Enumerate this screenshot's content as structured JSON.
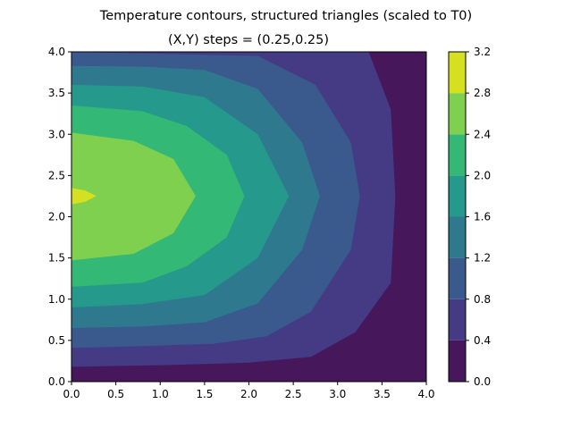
{
  "chart_data": {
    "type": "contour",
    "title": "Temperature contours, structured triangles (scaled to T0)",
    "subtitle": "(X,Y) steps = (0.25,0.25)",
    "xlabel": "",
    "ylabel": "",
    "xlim": [
      0,
      4
    ],
    "ylim": [
      0,
      4
    ],
    "x_ticks": [
      "0.0",
      "0.5",
      "1.0",
      "1.5",
      "2.0",
      "2.5",
      "3.0",
      "3.5",
      "4.0"
    ],
    "y_ticks": [
      "0.0",
      "0.5",
      "1.0",
      "1.5",
      "2.0",
      "2.5",
      "3.0",
      "3.5",
      "4.0"
    ],
    "levels": [
      0.0,
      0.4,
      0.8,
      1.2,
      1.6,
      2.0,
      2.4,
      2.8,
      3.2
    ],
    "level_colors": [
      "#46185b",
      "#453b84",
      "#3a5a8d",
      "#2f798e",
      "#25998b",
      "#33b876",
      "#7ed04e",
      "#d5e020"
    ],
    "colorbar_ticks": [
      "0.0",
      "0.4",
      "0.8",
      "1.2",
      "1.6",
      "2.0",
      "2.4",
      "2.8",
      "3.2"
    ],
    "contour_boundaries": [
      {
        "level": 0.4,
        "points": [
          [
            0,
            0.18
          ],
          [
            1,
            0.2
          ],
          [
            2,
            0.23
          ],
          [
            2.7,
            0.3
          ],
          [
            3.2,
            0.6
          ],
          [
            3.6,
            1.2
          ],
          [
            3.65,
            2.25
          ],
          [
            3.6,
            3.3
          ],
          [
            3.35,
            4
          ]
        ]
      },
      {
        "level": 0.8,
        "points": [
          [
            0,
            0.41
          ],
          [
            0.8,
            0.43
          ],
          [
            1.6,
            0.46
          ],
          [
            2.2,
            0.55
          ],
          [
            2.7,
            0.85
          ],
          [
            3.15,
            1.6
          ],
          [
            3.25,
            2.25
          ],
          [
            3.15,
            2.9
          ],
          [
            2.75,
            3.6
          ],
          [
            2.1,
            3.95
          ],
          [
            0,
            4
          ]
        ]
      },
      {
        "level": 1.2,
        "points": [
          [
            0,
            0.65
          ],
          [
            0.8,
            0.67
          ],
          [
            1.5,
            0.72
          ],
          [
            2.1,
            0.95
          ],
          [
            2.6,
            1.6
          ],
          [
            2.8,
            2.25
          ],
          [
            2.6,
            2.9
          ],
          [
            2.1,
            3.55
          ],
          [
            1.5,
            3.78
          ],
          [
            0.8,
            3.82
          ],
          [
            0,
            3.83
          ]
        ]
      },
      {
        "level": 1.6,
        "points": [
          [
            0,
            0.9
          ],
          [
            0.8,
            0.94
          ],
          [
            1.5,
            1.05
          ],
          [
            2.1,
            1.5
          ],
          [
            2.45,
            2.25
          ],
          [
            2.1,
            3.0
          ],
          [
            1.5,
            3.45
          ],
          [
            0.8,
            3.58
          ],
          [
            0,
            3.6
          ]
        ]
      },
      {
        "level": 2.0,
        "points": [
          [
            0,
            1.15
          ],
          [
            0.8,
            1.2
          ],
          [
            1.3,
            1.4
          ],
          [
            1.75,
            1.75
          ],
          [
            1.95,
            2.25
          ],
          [
            1.75,
            2.75
          ],
          [
            1.3,
            3.1
          ],
          [
            0.8,
            3.28
          ],
          [
            0,
            3.35
          ]
        ]
      },
      {
        "level": 2.4,
        "points": [
          [
            0,
            1.47
          ],
          [
            0.7,
            1.55
          ],
          [
            1.15,
            1.8
          ],
          [
            1.4,
            2.25
          ],
          [
            1.15,
            2.7
          ],
          [
            0.7,
            2.92
          ],
          [
            0,
            3.02
          ]
        ]
      },
      {
        "level": 2.8,
        "points": [
          [
            0,
            2.15
          ],
          [
            0.15,
            2.18
          ],
          [
            0.28,
            2.25
          ],
          [
            0.15,
            2.32
          ],
          [
            0,
            2.35
          ]
        ]
      }
    ]
  }
}
